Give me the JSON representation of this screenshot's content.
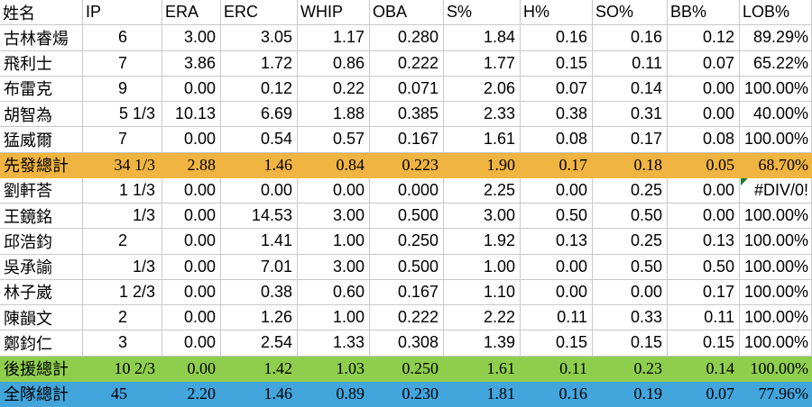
{
  "app": {
    "description": "pitching statistics spreadsheet table"
  },
  "table": {
    "columns": [
      {
        "key": "name",
        "label": "姓名"
      },
      {
        "key": "ip",
        "label": "IP"
      },
      {
        "key": "era",
        "label": "ERA"
      },
      {
        "key": "erc",
        "label": "ERC"
      },
      {
        "key": "whip",
        "label": "WHIP"
      },
      {
        "key": "oba",
        "label": "OBA"
      },
      {
        "key": "s_pct",
        "label": "S%"
      },
      {
        "key": "h_pct",
        "label": "H%"
      },
      {
        "key": "so_pct",
        "label": "SO%"
      },
      {
        "key": "bb_pct",
        "label": "BB%"
      },
      {
        "key": "lob_pct",
        "label": "LOB%"
      }
    ],
    "error_value": "#DIV/0!",
    "rows": [
      {
        "style": "normal",
        "cells": [
          "古林睿煬",
          "6",
          "3.00",
          "3.05",
          "1.17",
          "0.280",
          "1.84",
          "0.16",
          "0.16",
          "0.12",
          "89.29%"
        ]
      },
      {
        "style": "normal",
        "cells": [
          "飛利士",
          "7",
          "3.86",
          "1.72",
          "0.86",
          "0.222",
          "1.77",
          "0.15",
          "0.11",
          "0.07",
          "65.22%"
        ]
      },
      {
        "style": "normal",
        "cells": [
          "布雷克",
          "9",
          "0.00",
          "0.12",
          "0.22",
          "0.071",
          "2.06",
          "0.07",
          "0.14",
          "0.00",
          "100.00%"
        ]
      },
      {
        "style": "normal",
        "cells": [
          "胡智為",
          "5 1/3",
          "10.13",
          "6.69",
          "1.88",
          "0.385",
          "2.33",
          "0.38",
          "0.31",
          "0.00",
          "40.00%"
        ]
      },
      {
        "style": "normal",
        "cells": [
          "猛威爾",
          "7",
          "0.00",
          "0.54",
          "0.57",
          "0.167",
          "1.61",
          "0.08",
          "0.17",
          "0.08",
          "100.00%"
        ]
      },
      {
        "style": "starters-total",
        "cells": [
          "先發總計",
          "34 1/3",
          "2.88",
          "1.46",
          "0.84",
          "0.223",
          "1.90",
          "0.17",
          "0.18",
          "0.05",
          "68.70%"
        ]
      },
      {
        "style": "normal",
        "cells": [
          "劉軒荅",
          "1 1/3",
          "0.00",
          "0.00",
          "0.00",
          "0.000",
          "2.25",
          "0.00",
          "0.25",
          "0.00",
          "#DIV/0!"
        ]
      },
      {
        "style": "normal",
        "cells": [
          "王鏡銘",
          "1/3",
          "0.00",
          "14.53",
          "3.00",
          "0.500",
          "3.00",
          "0.50",
          "0.50",
          "0.00",
          "100.00%"
        ]
      },
      {
        "style": "normal",
        "cells": [
          "邱浩鈞",
          "2",
          "0.00",
          "1.41",
          "1.00",
          "0.250",
          "1.92",
          "0.13",
          "0.25",
          "0.13",
          "100.00%"
        ]
      },
      {
        "style": "normal",
        "cells": [
          "吳承諭",
          "1/3",
          "0.00",
          "7.01",
          "3.00",
          "0.500",
          "1.00",
          "0.00",
          "0.50",
          "0.50",
          "100.00%"
        ]
      },
      {
        "style": "normal",
        "cells": [
          "林子崴",
          "1 2/3",
          "0.00",
          "0.38",
          "0.60",
          "0.167",
          "1.10",
          "0.00",
          "0.00",
          "0.17",
          "100.00%"
        ]
      },
      {
        "style": "normal",
        "cells": [
          "陳韻文",
          "2",
          "0.00",
          "1.26",
          "1.00",
          "0.222",
          "2.22",
          "0.11",
          "0.33",
          "0.11",
          "100.00%"
        ]
      },
      {
        "style": "normal",
        "cells": [
          "鄭鈞仁",
          "3",
          "0.00",
          "2.54",
          "1.33",
          "0.308",
          "1.39",
          "0.15",
          "0.15",
          "0.15",
          "100.00%"
        ]
      },
      {
        "style": "relief-total",
        "cells": [
          "後援總計",
          "10 2/3",
          "0.00",
          "1.42",
          "1.03",
          "0.250",
          "1.61",
          "0.11",
          "0.23",
          "0.14",
          "100.00%"
        ]
      },
      {
        "style": "team-total",
        "cells": [
          "全隊總計",
          "45",
          "2.20",
          "1.46",
          "0.89",
          "0.230",
          "1.81",
          "0.16",
          "0.19",
          "0.07",
          "77.96%"
        ]
      }
    ]
  },
  "colors": {
    "starters_total_bg": "#F0B440",
    "relief_total_bg": "#8FCE4D",
    "team_total_bg": "#42A5DC",
    "gridline": "#C8C8C8",
    "error_indicator": "#1E7A34",
    "text": "#000000"
  }
}
